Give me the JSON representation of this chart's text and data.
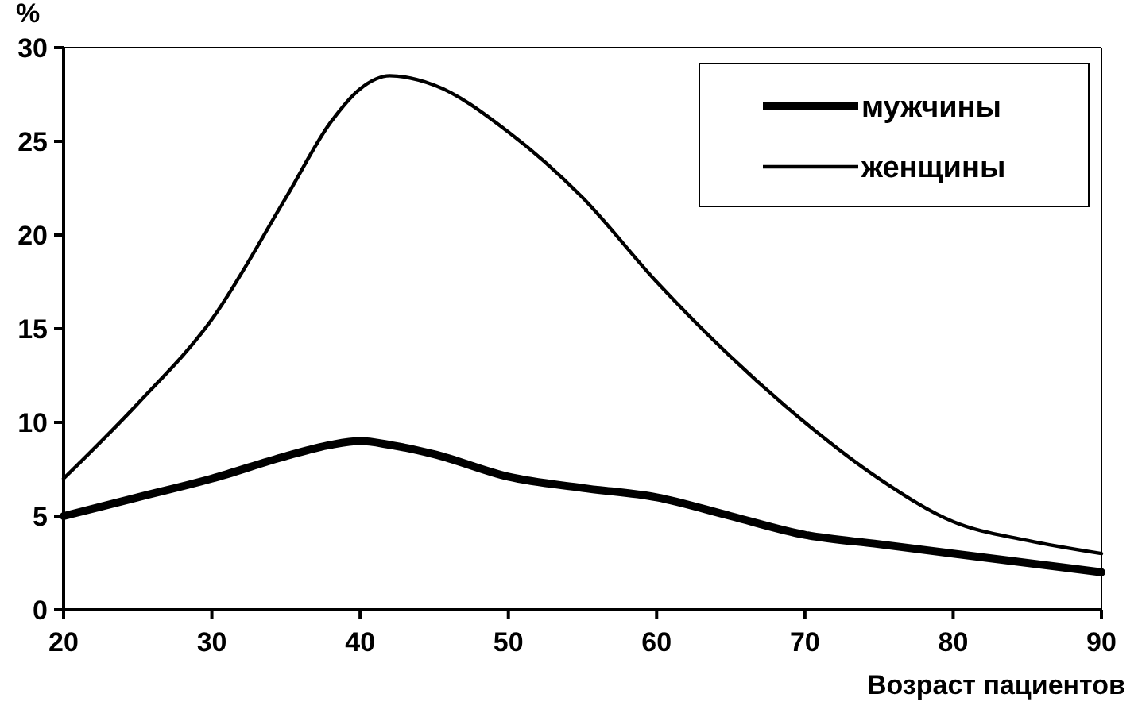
{
  "chart_data": {
    "type": "line",
    "ylabel": "%",
    "xlabel": "Возраст пациентов",
    "x": [
      20,
      25,
      30,
      35,
      38,
      40,
      42,
      45,
      50,
      55,
      60,
      65,
      70,
      75,
      80,
      85,
      90
    ],
    "series": [
      {
        "name": "мужчины",
        "color": "#000000",
        "values": [
          5,
          6,
          7,
          8.2,
          8.8,
          9,
          8.8,
          8.3,
          7.1,
          6.5,
          6,
          5,
          4,
          3.5,
          3,
          2.5,
          2
        ]
      },
      {
        "name": "женщины",
        "color": "#000000",
        "values": [
          7,
          11,
          15.5,
          22,
          26,
          27.8,
          28.5,
          28,
          25.5,
          22,
          17.5,
          13.5,
          10,
          7,
          4.7,
          3.7,
          3
        ]
      }
    ],
    "xlim": [
      20,
      90
    ],
    "xticks": [
      20,
      30,
      40,
      50,
      60,
      70,
      80,
      90
    ],
    "ylim": [
      0,
      30
    ],
    "yticks": [
      0,
      5,
      10,
      15,
      20,
      25,
      30
    ],
    "grid": false,
    "legend": "top right",
    "marker": "none",
    "line_style": "solid"
  }
}
